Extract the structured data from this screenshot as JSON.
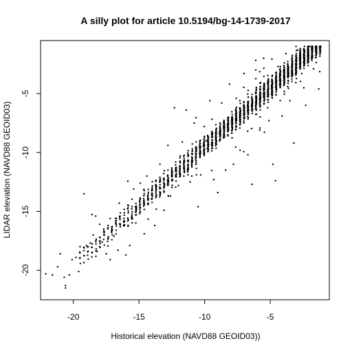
{
  "chart_data": {
    "type": "scatter",
    "title": "A silly plot for article 10.5194/bg-14-1739-2017",
    "xlabel": "Historical elevation (NAVD88 GEOID03))",
    "ylabel": "LIDAR elevation (NAVD88 GEOID03)",
    "xlim": [
      -22.5,
      -0.5
    ],
    "ylim": [
      -22.5,
      -0.5
    ],
    "xticks": [
      -20,
      -15,
      -10,
      -5
    ],
    "yticks": [
      -20,
      -15,
      -10,
      -5
    ],
    "xtick_labels": [
      "-20",
      "-15",
      "-10",
      "-5"
    ],
    "ytick_labels": [
      "-20",
      "-15",
      "-10",
      "-5"
    ],
    "grid": false,
    "legend": "none",
    "point_color": "#000000",
    "points_summary": "dense positively correlated cloud, ~4000 points, approximately y = x + 0.5 with scatter; strong vertical banding at regular x spacing",
    "points": [
      [
        -22.1,
        -20.3
      ],
      [
        -21.6,
        -20.4
      ],
      [
        -21.2,
        -19.7
      ],
      [
        -21.0,
        -18.6
      ],
      [
        -20.6,
        -21.3
      ],
      [
        -20.6,
        -21.5
      ],
      [
        -20.7,
        -20.6
      ],
      [
        -20.3,
        -20.4
      ],
      [
        -20.1,
        -19.1
      ],
      [
        -19.8,
        -18.9
      ],
      [
        -19.6,
        -20.1
      ],
      [
        -19.2,
        -13.5
      ],
      [
        -19.0,
        -17.9
      ],
      [
        -18.7,
        -17.7
      ],
      [
        -18.3,
        -15.4
      ],
      [
        -18.5,
        -17.0
      ],
      [
        -18.2,
        -18.4
      ],
      [
        -18.0,
        -16.1
      ],
      [
        -17.8,
        -17.6
      ],
      [
        -17.5,
        -18.6
      ],
      [
        -17.2,
        -19.1
      ],
      [
        -17.2,
        -15.6
      ],
      [
        -16.9,
        -17.1
      ],
      [
        -16.6,
        -18.3
      ],
      [
        -16.5,
        -14.3
      ],
      [
        -16.1,
        -16.2
      ],
      [
        -16.0,
        -18.7
      ],
      [
        -15.7,
        -17.9
      ],
      [
        -15.4,
        -13.1
      ],
      [
        -15.2,
        -14.8
      ],
      [
        -14.9,
        -12.6
      ],
      [
        -14.6,
        -16.9
      ],
      [
        -14.4,
        -12.0
      ],
      [
        -14.0,
        -13.0
      ],
      [
        -13.8,
        -16.2
      ],
      [
        -13.4,
        -11.0
      ],
      [
        -13.1,
        -14.9
      ],
      [
        -12.8,
        -9.4
      ],
      [
        -12.6,
        -13.7
      ],
      [
        -12.3,
        -6.2
      ],
      [
        -12.0,
        -12.8
      ],
      [
        -11.7,
        -9.1
      ],
      [
        -11.4,
        -6.4
      ],
      [
        -11.1,
        -12.5
      ],
      [
        -10.8,
        -7.5
      ],
      [
        -10.5,
        -14.6
      ],
      [
        -10.3,
        -11.9
      ],
      [
        -9.9,
        -9.0
      ],
      [
        -9.6,
        -5.6
      ],
      [
        -9.3,
        -12.3
      ],
      [
        -9.0,
        -13.4
      ],
      [
        -8.7,
        -5.8
      ],
      [
        -8.4,
        -11.5
      ],
      [
        -8.1,
        -4.2
      ],
      [
        -7.8,
        -11.0
      ],
      [
        -7.6,
        -5.4
      ],
      [
        -7.3,
        -9.8
      ],
      [
        -7.0,
        -3.3
      ],
      [
        -6.7,
        -10.2
      ],
      [
        -6.4,
        -12.7
      ],
      [
        -6.1,
        -3.0
      ],
      [
        -5.8,
        -8.1
      ],
      [
        -5.5,
        -2.0
      ],
      [
        -5.1,
        -7.3
      ],
      [
        -4.8,
        -11.0
      ],
      [
        -4.6,
        -12.4
      ],
      [
        -4.4,
        -2.7
      ],
      [
        -4.1,
        -6.9
      ],
      [
        -3.8,
        -1.6
      ],
      [
        -3.5,
        -5.6
      ],
      [
        -3.2,
        -9.2
      ],
      [
        -2.9,
        -1.3
      ],
      [
        -2.6,
        -3.3
      ],
      [
        -2.3,
        -6.0
      ],
      [
        -2.0,
        -1.0
      ],
      [
        -1.7,
        -2.9
      ],
      [
        -1.5,
        -1.3
      ],
      [
        -1.3,
        -4.6
      ]
    ]
  }
}
